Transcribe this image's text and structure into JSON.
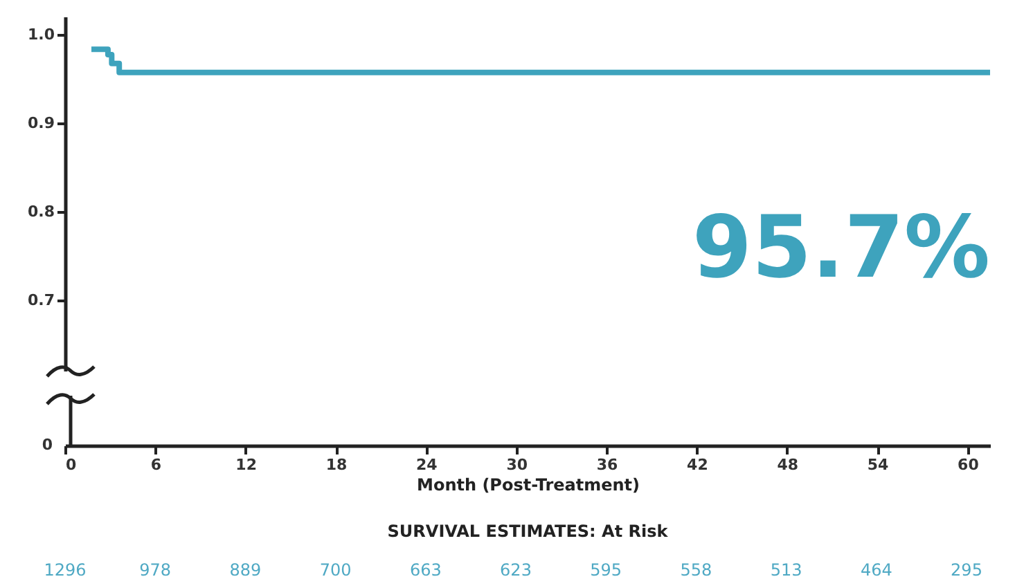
{
  "chart_data": [
    {
      "type": "step",
      "xlabel": "Month (Post-Treatment)",
      "x": [
        1.75,
        2.85,
        3.1,
        3.6,
        61.5
      ],
      "values": [
        0.983,
        0.977,
        0.967,
        0.957,
        0.957
      ],
      "color": "#3ea3bd",
      "xlim": [
        0,
        61.5
      ],
      "xticks": [
        0,
        6,
        12,
        18,
        24,
        30,
        36,
        42,
        48,
        54,
        60
      ],
      "ylim": [
        0.62,
        1.02
      ],
      "yticks": [
        0.7,
        0.8,
        0.9,
        {
          "value": 1,
          "label": "1.0"
        }
      ],
      "annotations": [
        "95.7%",
        "0"
      ]
    },
    {
      "type": "other",
      "title": "SURVIVAL ESTIMATES: At Risk",
      "categories": [
        null,
        null,
        null,
        null,
        null,
        null,
        null,
        null,
        null,
        null,
        null
      ],
      "values": [
        1296,
        978,
        889,
        700,
        663,
        623,
        595,
        558,
        513,
        464,
        295
      ],
      "color": "#4fa9c4",
      "data_labels": true
    }
  ]
}
